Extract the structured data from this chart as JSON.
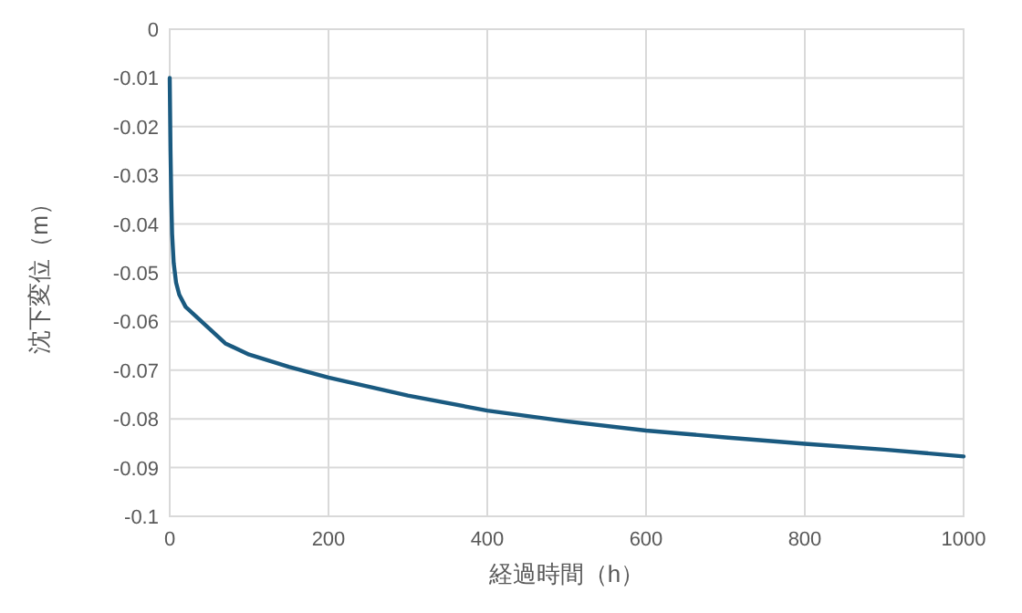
{
  "chart_data": {
    "type": "line",
    "xlabel": "経過時間（h）",
    "ylabel": "沈下変位（m）",
    "xlim": [
      0,
      1000
    ],
    "xticks": [
      0,
      200,
      400,
      600,
      800,
      1000
    ],
    "ylim": [
      -0.1,
      0
    ],
    "yticks": [
      -0.1,
      -0.09,
      -0.08,
      -0.07,
      -0.06,
      -0.05,
      -0.04,
      -0.03,
      -0.02,
      -0.01,
      0
    ],
    "grid": true,
    "marker": "none",
    "line_style": "solid",
    "series": [
      {
        "color": "#1a5a80",
        "x": [
          0,
          1,
          2,
          3,
          5,
          8,
          12,
          20,
          30,
          50,
          70,
          100,
          150,
          200,
          300,
          400,
          500,
          600,
          700,
          800,
          900,
          1000
        ],
        "values": [
          -0.01,
          -0.025,
          -0.035,
          -0.042,
          -0.048,
          -0.052,
          -0.0545,
          -0.057,
          -0.0585,
          -0.0615,
          -0.0645,
          -0.0668,
          -0.0693,
          -0.0715,
          -0.0752,
          -0.0783,
          -0.0805,
          -0.0824,
          -0.0838,
          -0.0851,
          -0.0863,
          -0.0877
        ]
      }
    ]
  }
}
